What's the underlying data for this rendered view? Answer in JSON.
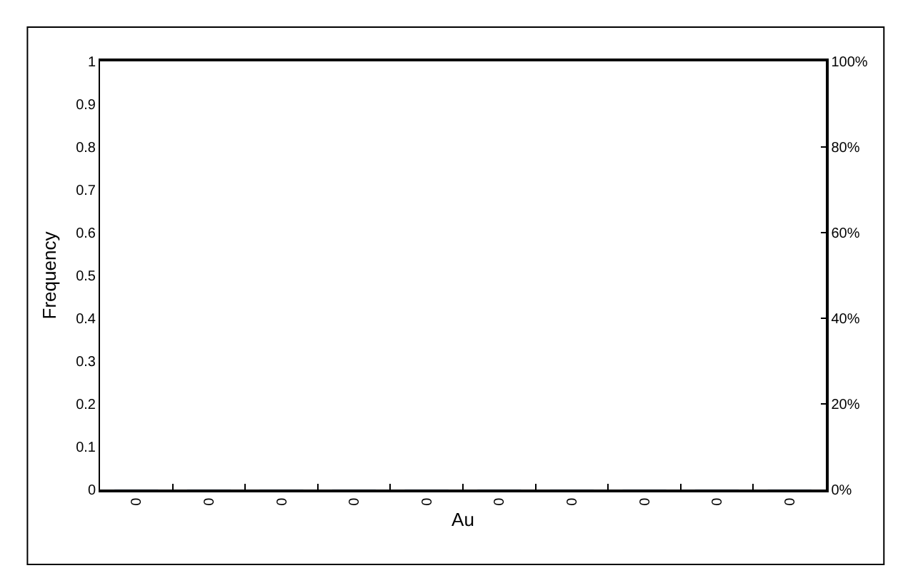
{
  "chart_data": {
    "type": "bar",
    "xlabel": "Au",
    "ylabel": "Frequency",
    "categories": [
      "0",
      "0",
      "0",
      "0",
      "0",
      "0",
      "0",
      "0",
      "0",
      "0"
    ],
    "values": [
      0,
      0,
      0,
      0,
      0,
      0,
      0,
      0,
      0,
      0
    ],
    "ylim": [
      0,
      1
    ],
    "yticks": [
      0,
      0.1,
      0.2,
      0.3,
      0.4,
      0.5,
      0.6,
      0.7,
      0.8,
      0.9,
      1
    ],
    "y2lim": [
      0,
      100
    ],
    "y2ticks": [
      {
        "value": 0,
        "label": "0%"
      },
      {
        "value": 20,
        "label": "20%"
      },
      {
        "value": 40,
        "label": "40%"
      },
      {
        "value": 60,
        "label": "60%"
      },
      {
        "value": 80,
        "label": "80%"
      },
      {
        "value": 100,
        "label": "100%"
      }
    ]
  }
}
